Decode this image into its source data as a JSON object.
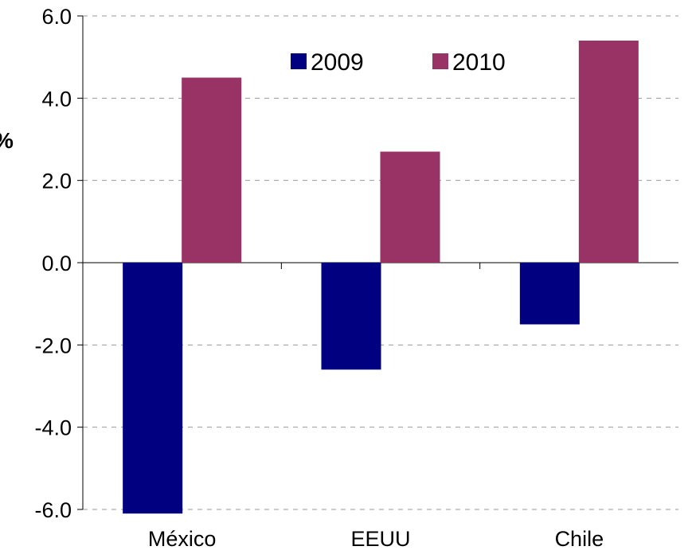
{
  "chart_data": {
    "type": "bar",
    "title": "",
    "xlabel": "",
    "ylabel": "%",
    "categories": [
      "México",
      "EEUU",
      "Chile"
    ],
    "series": [
      {
        "name": "2009",
        "values": [
          -6.1,
          -2.6,
          -1.5
        ],
        "color": "#000080"
      },
      {
        "name": "2010",
        "values": [
          4.5,
          2.7,
          5.4
        ],
        "color": "#993366"
      }
    ],
    "ylim": [
      -6.0,
      6.0
    ],
    "yticks": [
      "6.0",
      "4.0",
      "2.0",
      "0.0",
      "-2.0",
      "-4.0",
      "-6.0"
    ],
    "grid": true,
    "legend_position": "top"
  }
}
